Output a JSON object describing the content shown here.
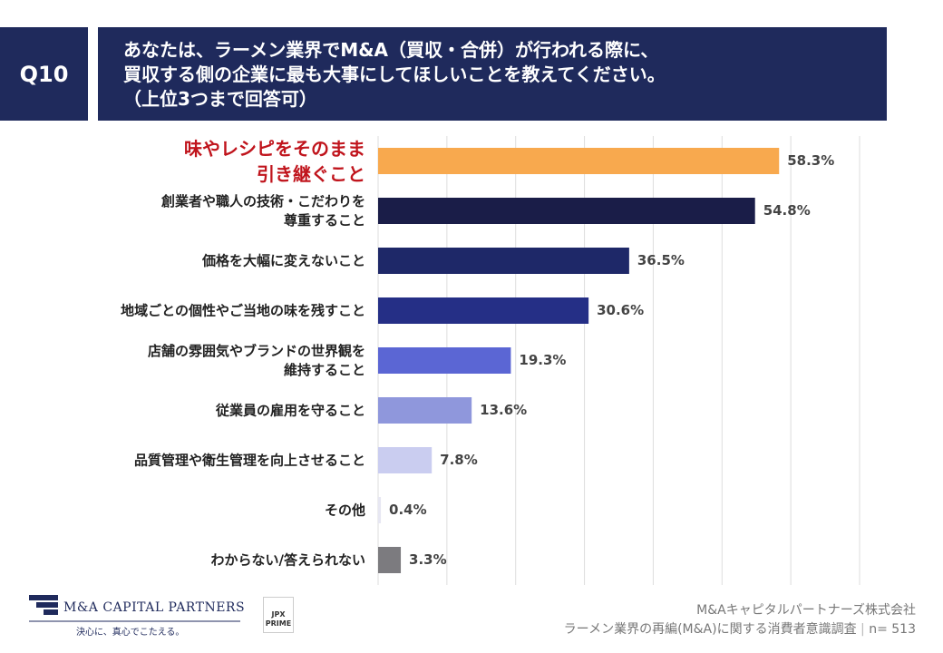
{
  "header": {
    "number": "Q10"
  },
  "chart_data": {
    "type": "hbar",
    "title": "あなたは、ラーメン業界でM&A（買収・合併）が行われる際に、\n買収する側の企業に最も大事にしてほしいことを教えてください。\n（上位3つまで回答可）",
    "categories": [
      "味やレシピをそのまま\n引き継ぐこと",
      "創業者や職人の技術・こだわりを\n尊重すること",
      "価格を大幅に変えないこと",
      "地域ごとの個性やご当地の味を残すこと",
      "店舗の雰囲気やブランドの世界観を\n維持すること",
      "従業員の雇用を守ること",
      "品質管理や衛生管理を向上させること",
      "その他",
      "わからない/答えられない"
    ],
    "values": [
      58.3,
      54.8,
      36.5,
      30.6,
      19.3,
      13.6,
      7.8,
      0.4,
      3.3
    ],
    "value_labels": [
      "58.3%",
      "54.8%",
      "36.5%",
      "30.6%",
      "19.3%",
      "13.6%",
      "7.8%",
      "0.4%",
      "3.3%"
    ],
    "colors": [
      "#f8a94e",
      "#1a1d48",
      "#1e2868",
      "#252f86",
      "#5b66d4",
      "#8f97dc",
      "#cacdf0",
      "#e7e7f2",
      "#7c7b7f"
    ],
    "highlight": {
      "index": 0,
      "color": "#c0141c"
    },
    "xlim": [
      0,
      70
    ],
    "xticks": [
      0,
      10,
      20,
      30,
      40,
      50,
      60,
      70
    ],
    "grid": true
  },
  "footer": {
    "logo": "M&A CAPITAL PARTNERS",
    "slogan": "決心に、真心でこたえる。",
    "badge": "JPX\nPRIME",
    "company": "M&Aキャピタルパートナーズ株式会社",
    "survey": "ラーメン業界の再編(M&A)に関する消費者意識調査",
    "sample": "n= 513"
  }
}
